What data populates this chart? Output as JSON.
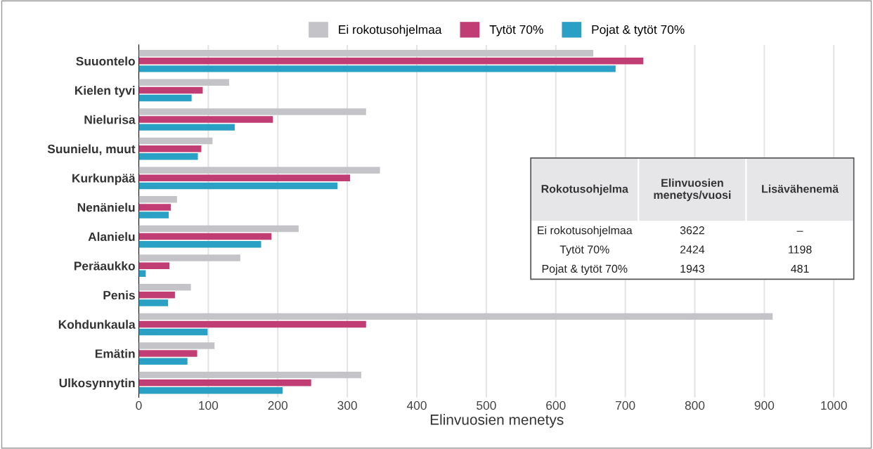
{
  "chart_data": [
    {
      "type": "bar",
      "orientation": "horizontal",
      "xlabel": "Elinvuosien menetys",
      "categories": [
        "Suuontelo",
        "Kielen tyvi",
        "Nielurisa",
        "Suunielu, muut",
        "Kurkunpää",
        "Nenänielu",
        "Alanielu",
        "Peräaukko",
        "Penis",
        "Kohdunkaula",
        "Emätin",
        "Ulkosynnytin"
      ],
      "series": [
        {
          "name": "Ei rokotusohjelmaa",
          "color": "#c4c3c8",
          "values": [
            654,
            130,
            327,
            106,
            347,
            55,
            230,
            146,
            75,
            912,
            109,
            320
          ]
        },
        {
          "name": "Tytöt 70%",
          "color": "#c03e74",
          "values": [
            726,
            92,
            193,
            90,
            304,
            46,
            191,
            44,
            52,
            327,
            84,
            248
          ]
        },
        {
          "name": "Pojat & tytöt 70%",
          "color": "#2aa1c4",
          "values": [
            686,
            76,
            138,
            85,
            286,
            43,
            176,
            10,
            42,
            99,
            70,
            207
          ]
        }
      ],
      "xlim": [
        0,
        1030
      ],
      "xticks": [
        0,
        100,
        200,
        300,
        400,
        500,
        600,
        700,
        800,
        900,
        1000
      ],
      "grid": "x",
      "legend": "top"
    },
    {
      "type": "other",
      "annotations": [
        [
          "Rokotusohjelma",
          "Elinvuosien\nmenetys/vuosi",
          "Lisävähenemä"
        ],
        [
          "Ei rokotusohjelmaa",
          "3622",
          "–"
        ],
        [
          "Tytöt 70%",
          "2424",
          "1198"
        ],
        [
          "Pojat & tytöt 70%",
          "1943",
          "481"
        ]
      ]
    }
  ]
}
